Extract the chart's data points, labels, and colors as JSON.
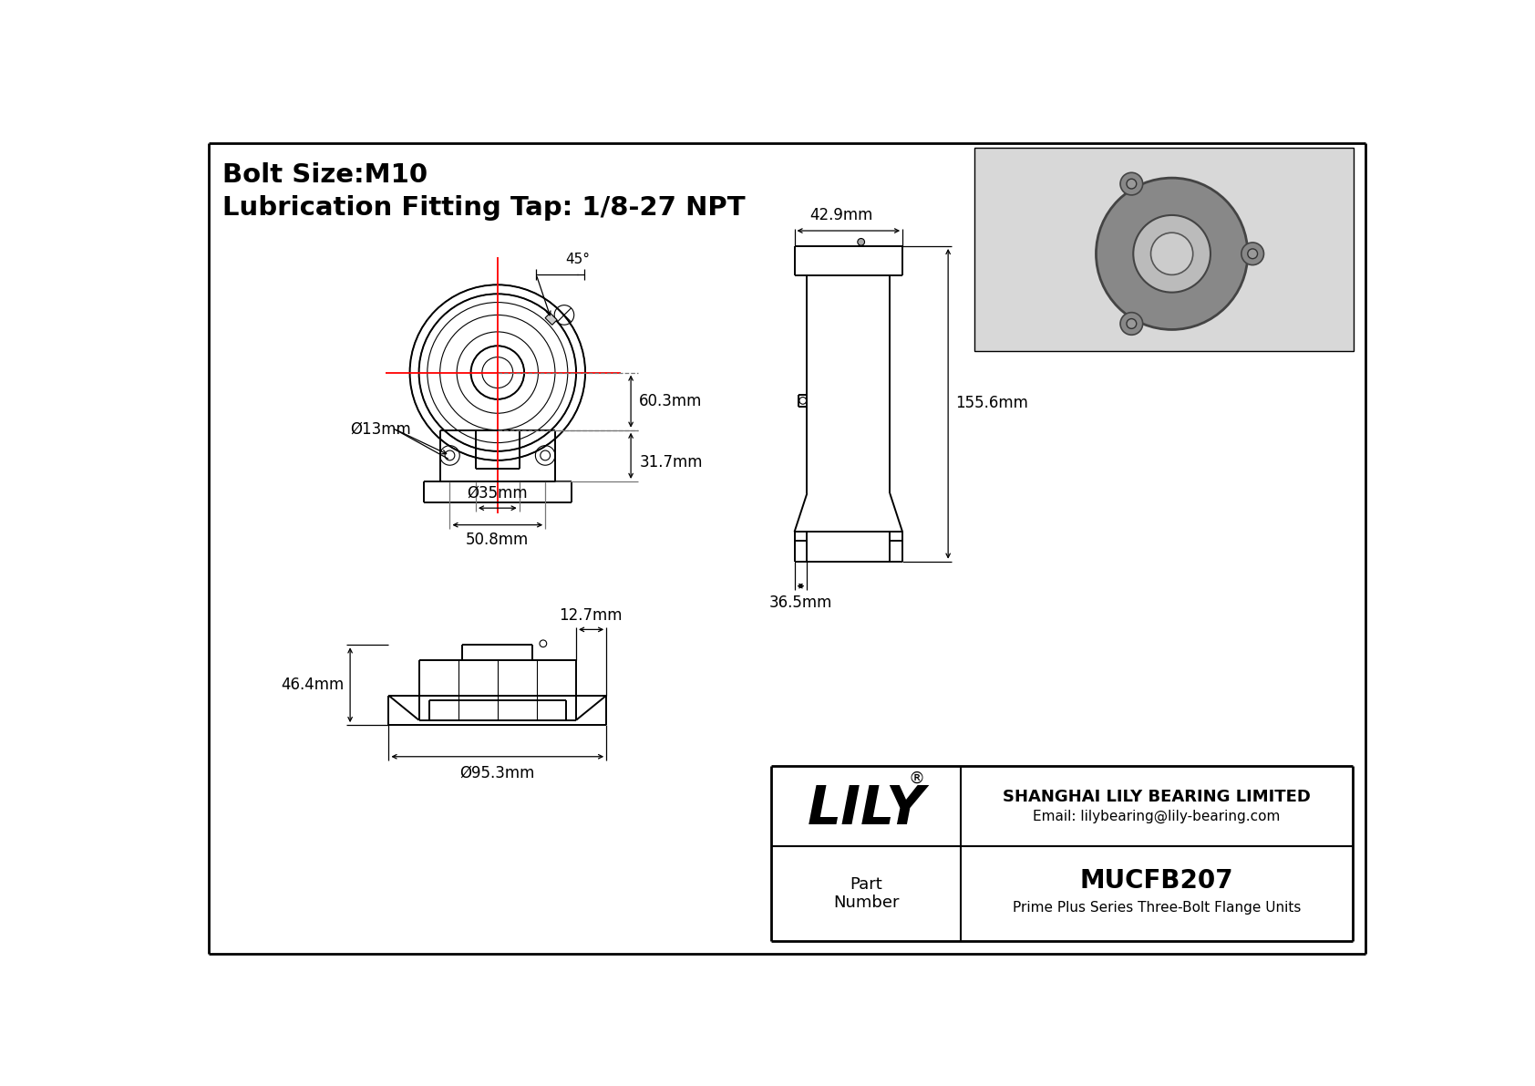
{
  "bg_color": "#ffffff",
  "line_color": "#000000",
  "red_color": "#ff0000",
  "title_line1": "Bolt Size:M10",
  "title_line2": "Lubrication Fitting Tap: 1/8-27 NPT",
  "title_fontsize": 20,
  "dim_fontsize": 12,
  "logo_text": "LILY",
  "logo_sup": "®",
  "company_line1": "SHANGHAI LILY BEARING LIMITED",
  "company_line2": "Email: lilybearing@lily-bearing.com",
  "part_label": "Part\nNumber",
  "part_number": "MUCFB207",
  "part_desc": "Prime Plus Series Three-Bolt Flange Units"
}
